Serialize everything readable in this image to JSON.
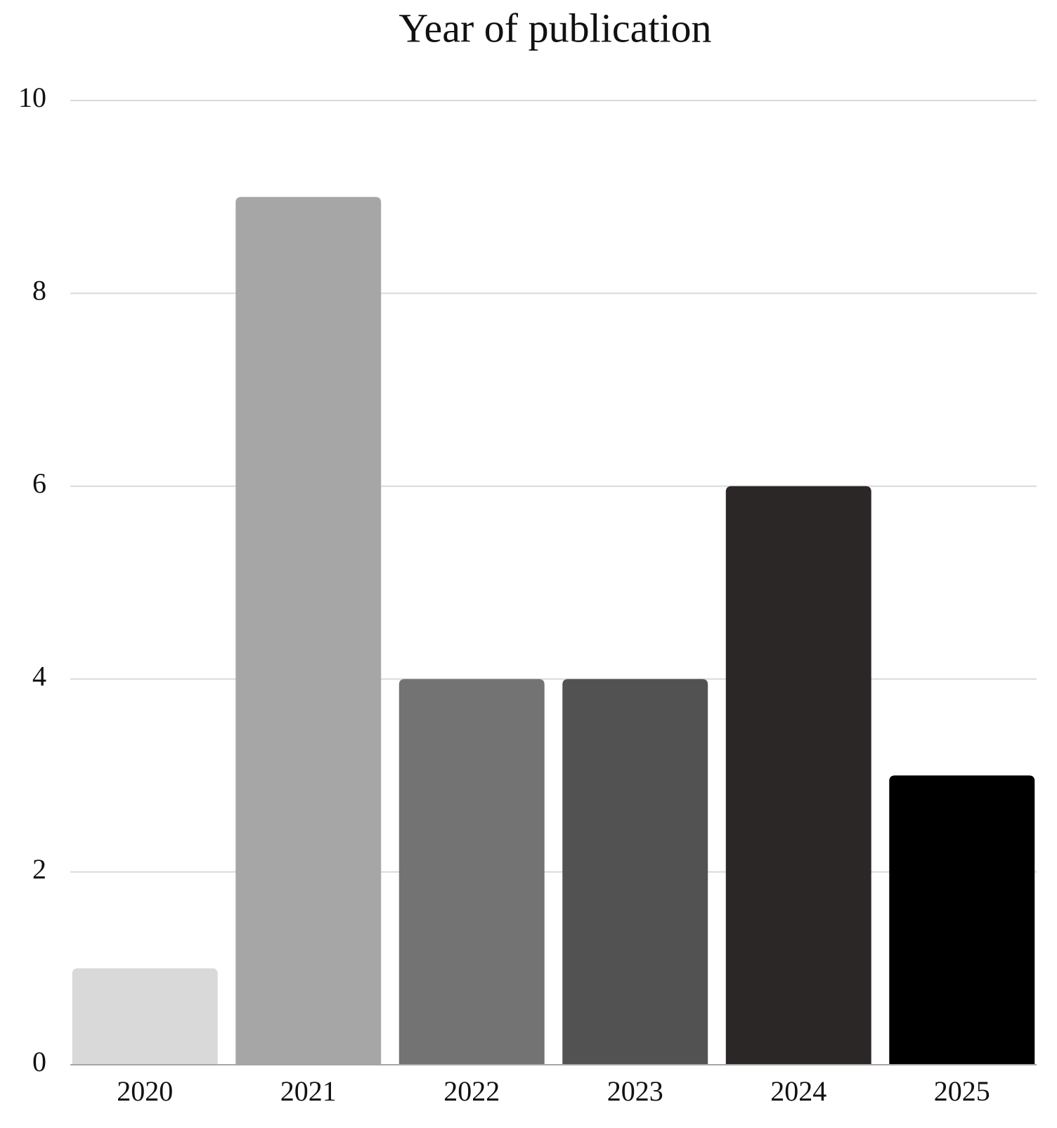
{
  "chart_data": {
    "type": "bar",
    "title": "Year of publication",
    "categories": [
      "2020",
      "2021",
      "2022",
      "2023",
      "2024",
      "2025"
    ],
    "values": [
      1,
      9,
      4,
      4,
      6,
      3
    ],
    "colors": [
      "#d9d9d9",
      "#a6a6a6",
      "#737373",
      "#525252",
      "#2b2726",
      "#000000"
    ],
    "ylim": [
      0,
      10
    ],
    "yticks": [
      0,
      2,
      4,
      6,
      8,
      10
    ],
    "grid": true
  }
}
